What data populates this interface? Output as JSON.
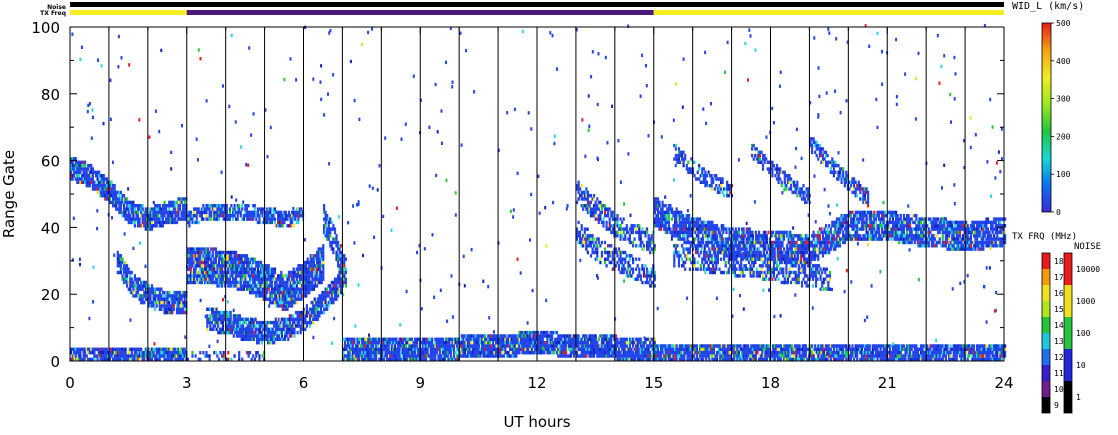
{
  "top_bar": {
    "noise_label": "Noise",
    "txfreq_label": "TX Freq",
    "segments": [
      {
        "start": 0,
        "end": 3,
        "color": "#f7ee22"
      },
      {
        "start": 3,
        "end": 15,
        "color": "#4a1a7a"
      },
      {
        "start": 15,
        "end": 24,
        "color": "#f7ee22"
      }
    ]
  },
  "chart_data": {
    "type": "heatmap",
    "title": "",
    "xlabel": "UT hours",
    "ylabel": "Range Gate",
    "xlim": [
      0,
      24
    ],
    "ylim": [
      0,
      100
    ],
    "xticks": [
      0,
      3,
      6,
      9,
      12,
      15,
      18,
      21,
      24
    ],
    "yticks": [
      0,
      20,
      40,
      60,
      80,
      100
    ],
    "scan_boundaries_hours": [
      1,
      2,
      3,
      4,
      5,
      6,
      7,
      8,
      9,
      10,
      11,
      12,
      13,
      14,
      15,
      16,
      17,
      18,
      19,
      20,
      21,
      22,
      23
    ],
    "bands": [
      {
        "t": [
          0,
          0.5,
          1,
          1.5,
          2,
          2.5,
          3
        ],
        "gate": [
          57,
          55,
          50,
          44,
          42,
          44,
          45
        ],
        "width": 3,
        "density": 0.85
      },
      {
        "t": [
          1.2,
          1.6,
          2,
          2.5,
          3
        ],
        "gate": [
          29,
          22,
          19,
          17,
          17
        ],
        "width": 3,
        "density": 0.8
      },
      {
        "t": [
          3,
          3.5,
          4,
          4.5,
          5,
          5.5,
          6
        ],
        "gate": [
          42,
          44,
          44,
          44,
          43,
          42,
          43
        ],
        "width": 2,
        "density": 0.75
      },
      {
        "t": [
          3,
          3.5,
          4,
          4.5,
          5,
          5.5,
          6,
          6.5
        ],
        "gate": [
          28,
          28,
          27,
          26,
          23,
          20,
          24,
          29
        ],
        "width": 5,
        "density": 0.9
      },
      {
        "t": [
          3.5,
          4,
          4.5,
          5,
          5.5,
          6,
          6.5,
          7
        ],
        "gate": [
          12,
          11,
          9,
          8,
          9,
          12,
          17,
          24
        ],
        "width": 3,
        "density": 0.85
      },
      {
        "t": [
          6.5,
          6.8,
          7.1
        ],
        "gate": [
          42,
          34,
          25
        ],
        "width": 4,
        "density": 0.7
      },
      {
        "t": [
          13,
          13.5,
          14,
          14.5,
          15
        ],
        "gate": [
          50,
          45,
          40,
          37,
          35
        ],
        "width": 3,
        "density": 0.6
      },
      {
        "t": [
          13,
          13.5,
          14,
          14.5,
          15
        ],
        "gate": [
          38,
          33,
          30,
          27,
          25
        ],
        "width": 3,
        "density": 0.55
      },
      {
        "t": [
          15,
          16,
          17,
          18,
          19,
          20,
          21,
          22,
          23,
          24
        ],
        "gate": [
          44,
          38,
          35,
          34,
          33,
          40,
          40,
          38,
          37,
          38
        ],
        "width": 4,
        "density": 0.8
      },
      {
        "t": [
          15.5,
          16.5,
          17.5,
          18.5,
          19.5
        ],
        "gate": [
          31,
          29,
          28,
          26,
          24
        ],
        "width": 3,
        "density": 0.55
      },
      {
        "t": [
          15.5,
          16.2,
          17
        ],
        "gate": [
          62,
          55,
          50
        ],
        "width": 2,
        "density": 0.6
      },
      {
        "t": [
          17.5,
          18.2,
          19
        ],
        "gate": [
          62,
          55,
          48
        ],
        "width": 2,
        "density": 0.6
      },
      {
        "t": [
          19,
          19.7,
          20.5
        ],
        "gate": [
          65,
          56,
          48
        ],
        "width": 2,
        "density": 0.65
      },
      {
        "t": [
          0,
          3
        ],
        "gate": [
          1,
          1
        ],
        "width": 2,
        "density": 0.9
      },
      {
        "t": [
          3,
          5
        ],
        "gate": [
          1,
          1
        ],
        "width": 1,
        "density": 0.3
      },
      {
        "t": [
          7,
          9,
          11,
          12,
          13,
          15
        ],
        "gate": [
          3,
          3,
          4,
          5,
          4,
          3
        ],
        "width": 3,
        "density": 0.9
      },
      {
        "t": [
          15,
          24
        ],
        "gate": [
          2,
          2
        ],
        "width": 2,
        "density": 0.85
      }
    ],
    "scatter_density": 0.03,
    "colorbars": [
      {
        "name": "velocity-colorbar",
        "label": "WID_L (km/s)",
        "type": "continuous",
        "range": [
          0,
          500
        ],
        "ticks": [
          0,
          100,
          200,
          300,
          400,
          500
        ],
        "stops": [
          "#3a2cd8",
          "#0a72f0",
          "#18d8d0",
          "#24c43c",
          "#9ee820",
          "#f0ee22",
          "#f5a012",
          "#e81c1c"
        ]
      },
      {
        "name": "txfreq-colorbar",
        "label": "TX FRQ (MHz)",
        "type": "discrete",
        "ticks": [
          9,
          10,
          11,
          12,
          13,
          14,
          15,
          16,
          17,
          18
        ],
        "colors": [
          "#000000",
          "#6e208a",
          "#3a1fc8",
          "#1f6ff0",
          "#1ec8d8",
          "#24c43c",
          "#b4e41e",
          "#f0e022",
          "#f59a12",
          "#e81c1c"
        ]
      },
      {
        "name": "noise-colorbar",
        "label": "NOISE",
        "type": "discrete",
        "ticks": [
          "1",
          "10",
          "100",
          "1000",
          "10000"
        ],
        "colors": [
          "#000000",
          "#2424d8",
          "#24c43c",
          "#f0e022",
          "#e81c1c"
        ]
      }
    ],
    "palette": {
      "blue": "#2244e8",
      "dark_blue": "#1028c0",
      "cyan": "#28d8e0",
      "green": "#28c83c",
      "yellow": "#f0e022",
      "orange": "#f5a012",
      "red": "#e81c1c"
    }
  }
}
